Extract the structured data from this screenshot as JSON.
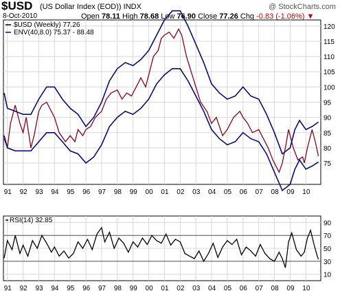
{
  "header": {
    "symbol": "$USD",
    "name": "(US Dollar Index (EOD)) INDX",
    "date": "8-Oct-2010",
    "open_label": "Open",
    "open": "78.11",
    "high_label": "High",
    "high": "78.68",
    "low_label": "Low",
    "low": "76.90",
    "close_label": "Close",
    "close": "77.26",
    "chg_label": "Chg",
    "chg": "-0.83 (-1.06%)",
    "credit": "@ StockCharts.com"
  },
  "colors": {
    "price": "#8b0020",
    "envelope": "#0a0a7a",
    "rsi": "#000000",
    "grid": "#d8d8d8",
    "down": "#c00000"
  },
  "chart_data": [
    {
      "type": "line",
      "legend_placement": "top-left",
      "legend": [
        "$USD (Weekly) 77.26",
        "ENV(40,8.0) 75.37 - 88.48"
      ],
      "series": [
        {
          "name": "$USD (Weekly) 77.26",
          "x": [
            1990.8,
            1991.0,
            1991.2,
            1991.5,
            1991.8,
            1992.0,
            1992.2,
            1992.5,
            1992.7,
            1993.0,
            1993.2,
            1993.5,
            1993.7,
            1994.0,
            1994.3,
            1994.7,
            1995.0,
            1995.3,
            1995.5,
            1995.8,
            1996.0,
            1996.3,
            1996.6,
            1997.0,
            1997.3,
            1997.6,
            1998.0,
            1998.3,
            1998.6,
            1998.9,
            1999.2,
            1999.5,
            1999.8,
            2000.0,
            2000.3,
            2000.6,
            2000.8,
            2001.0,
            2001.3,
            2001.6,
            2001.9,
            2002.1,
            2002.4,
            2002.7,
            2003.0,
            2003.3,
            2003.7,
            2004.0,
            2004.3,
            2004.7,
            2005.0,
            2005.4,
            2005.8,
            2006.0,
            2006.3,
            2006.6,
            2007.0,
            2007.3,
            2007.6,
            2007.9,
            2008.2,
            2008.3,
            2008.5,
            2008.7,
            2008.9,
            2009.0,
            2009.2,
            2009.5,
            2009.8,
            2009.9,
            2010.1,
            2010.4,
            2010.5,
            2010.6,
            2010.8
          ],
          "values": [
            83,
            80,
            88,
            94,
            88,
            85,
            90,
            80,
            84,
            92,
            94,
            95,
            93,
            90,
            85,
            82,
            84,
            82,
            86,
            84,
            86,
            87,
            90,
            92,
            96,
            98,
            99,
            96,
            98,
            97,
            100,
            103,
            100,
            104,
            110,
            112,
            116,
            117,
            118,
            116,
            119,
            117,
            110,
            105,
            100,
            95,
            92,
            88,
            90,
            84,
            86,
            90,
            92,
            90,
            88,
            85,
            86,
            83,
            80,
            76,
            73,
            72,
            75,
            80,
            86,
            84,
            80,
            76,
            77,
            75,
            80,
            86,
            84,
            82,
            77.26
          ]
        },
        {
          "name": "ENV(40,8.0) 75.37 - 88.48",
          "x": [
            1990.8,
            1991.0,
            1991.5,
            1992.0,
            1992.5,
            1993.0,
            1993.5,
            1994.0,
            1994.5,
            1995.0,
            1995.5,
            1996.0,
            1996.5,
            1997.0,
            1997.5,
            1998.0,
            1998.5,
            1999.0,
            1999.5,
            2000.0,
            2000.5,
            2001.0,
            2001.5,
            2002.0,
            2002.5,
            2003.0,
            2003.5,
            2004.0,
            2004.5,
            2005.0,
            2005.5,
            2006.0,
            2006.5,
            2007.0,
            2007.5,
            2008.0,
            2008.5,
            2009.0,
            2009.3,
            2009.6,
            2010.0,
            2010.4,
            2010.8
          ],
          "values": [
            98,
            93,
            92,
            91,
            91,
            96,
            100,
            100,
            96,
            93,
            91,
            87,
            90,
            95,
            102,
            106,
            108,
            107,
            109,
            112,
            117,
            122,
            125,
            125,
            120,
            114,
            108,
            101,
            98,
            96,
            97,
            100,
            97,
            96,
            91,
            85,
            78,
            80,
            86,
            89,
            86,
            87,
            88.48
          ]
        },
        {
          "name": "",
          "x": [
            1990.8,
            1991.0,
            1991.5,
            1992.0,
            1992.5,
            1993.0,
            1993.5,
            1994.0,
            1994.5,
            1995.0,
            1995.5,
            1996.0,
            1996.5,
            1997.0,
            1997.5,
            1998.0,
            1998.5,
            1999.0,
            1999.5,
            2000.0,
            2000.5,
            2001.0,
            2001.5,
            2002.0,
            2002.5,
            2003.0,
            2003.5,
            2004.0,
            2004.5,
            2005.0,
            2005.5,
            2006.0,
            2006.5,
            2007.0,
            2007.5,
            2008.0,
            2008.5,
            2009.0,
            2009.3,
            2009.6,
            2010.0,
            2010.4,
            2010.8
          ],
          "values": [
            84,
            80,
            79,
            79,
            79,
            82,
            85,
            85,
            82,
            79,
            78,
            75,
            77,
            81,
            87,
            90,
            92,
            91,
            93,
            96,
            101,
            104,
            106,
            106,
            102,
            97,
            92,
            86,
            83,
            81,
            82,
            85,
            83,
            82,
            78,
            72,
            66,
            68,
            73,
            76,
            73,
            74,
            75.37
          ]
        }
      ],
      "ylim": [
        68,
        122
      ],
      "y_ticks": [
        75,
        80,
        85,
        90,
        95,
        100,
        105,
        110,
        115,
        120
      ],
      "x_ticks": [
        "91",
        "92",
        "93",
        "94",
        "95",
        "96",
        "97",
        "98",
        "99",
        "00",
        "01",
        "02",
        "03",
        "04",
        "05",
        "06",
        "07",
        "08",
        "09",
        "10"
      ],
      "grid": true
    },
    {
      "type": "line",
      "legend": [
        "RSI(14) 32.85"
      ],
      "series": [
        {
          "name": "RSI(14) 32.85",
          "x": [
            1990.8,
            1991.0,
            1991.3,
            1991.5,
            1991.8,
            1992.0,
            1992.3,
            1992.6,
            1992.9,
            1993.2,
            1993.5,
            1993.8,
            1994.0,
            1994.3,
            1994.6,
            1994.9,
            1995.2,
            1995.5,
            1995.8,
            1996.1,
            1996.4,
            1996.7,
            1997.0,
            1997.2,
            1997.5,
            1997.8,
            1998.1,
            1998.4,
            1998.7,
            1999.0,
            1999.3,
            1999.6,
            1999.9,
            2000.2,
            2000.5,
            2000.8,
            2001.1,
            2001.4,
            2001.7,
            2002.0,
            2002.3,
            2002.6,
            2002.9,
            2003.2,
            2003.5,
            2003.8,
            2004.1,
            2004.4,
            2004.7,
            2005.0,
            2005.3,
            2005.6,
            2005.9,
            2006.2,
            2006.5,
            2006.8,
            2007.1,
            2007.4,
            2007.7,
            2008.0,
            2008.3,
            2008.5,
            2008.7,
            2008.9,
            2009.1,
            2009.4,
            2009.7,
            2009.9,
            2010.1,
            2010.3,
            2010.5,
            2010.7,
            2010.8
          ],
          "values": [
            35,
            62,
            48,
            70,
            42,
            55,
            38,
            62,
            50,
            70,
            58,
            44,
            52,
            38,
            46,
            35,
            42,
            60,
            50,
            64,
            48,
            72,
            82,
            60,
            75,
            50,
            66,
            58,
            44,
            60,
            52,
            66,
            56,
            70,
            62,
            58,
            72,
            55,
            64,
            60,
            42,
            38,
            34,
            46,
            30,
            42,
            58,
            36,
            52,
            62,
            56,
            64,
            40,
            52,
            46,
            38,
            56,
            42,
            34,
            30,
            44,
            34,
            20,
            60,
            74,
            48,
            38,
            44,
            66,
            78,
            58,
            40,
            32.85
          ]
        }
      ],
      "ylim": [
        0,
        100
      ],
      "y_ticks": [
        10,
        30,
        50,
        70,
        90
      ],
      "reference_lines": [
        30,
        70
      ],
      "x_ticks": [
        "91",
        "92",
        "93",
        "94",
        "95",
        "96",
        "97",
        "98",
        "99",
        "00",
        "01",
        "02",
        "03",
        "04",
        "05",
        "06",
        "07",
        "08",
        "09",
        "10"
      ],
      "grid": true
    }
  ]
}
